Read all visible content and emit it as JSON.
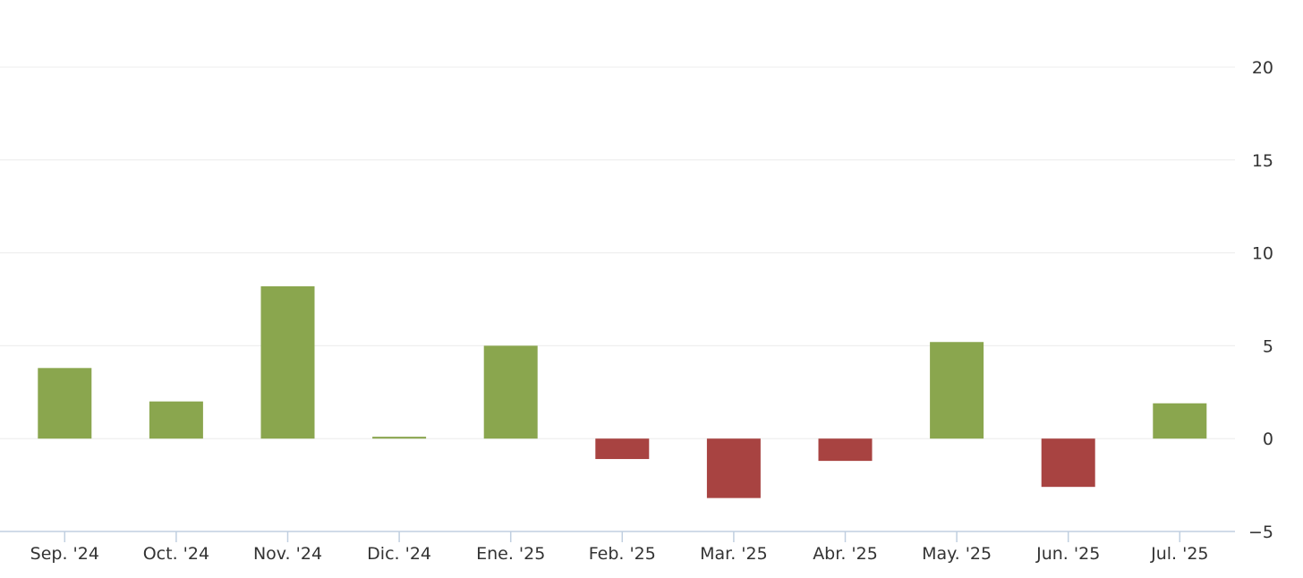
{
  "chart_data": {
    "type": "bar",
    "categories": [
      "Sep. '24",
      "Oct. '24",
      "Nov. '24",
      "Dic. '24",
      "Ene. '25",
      "Feb. '25",
      "Mar. '25",
      "Abr. '25",
      "May. '25",
      "Jun. '25",
      "Jul. '25"
    ],
    "values": [
      3.8,
      2.0,
      8.2,
      0.1,
      5.0,
      -1.1,
      -3.2,
      -1.2,
      5.2,
      -2.6,
      1.9
    ],
    "ylim": [
      -5,
      20
    ],
    "yticks": [
      -5,
      0,
      5,
      10,
      15,
      20
    ],
    "ytick_labels": [
      "−5",
      "0",
      "5",
      "10",
      "15",
      "20"
    ],
    "yaxis_position": "right",
    "grid": true,
    "legend": "none",
    "colors": {
      "positive": "#8aa64e",
      "negative": "#a84341",
      "grid": "#ececec",
      "axis": "#c0cfe0",
      "text": "#333333"
    }
  }
}
